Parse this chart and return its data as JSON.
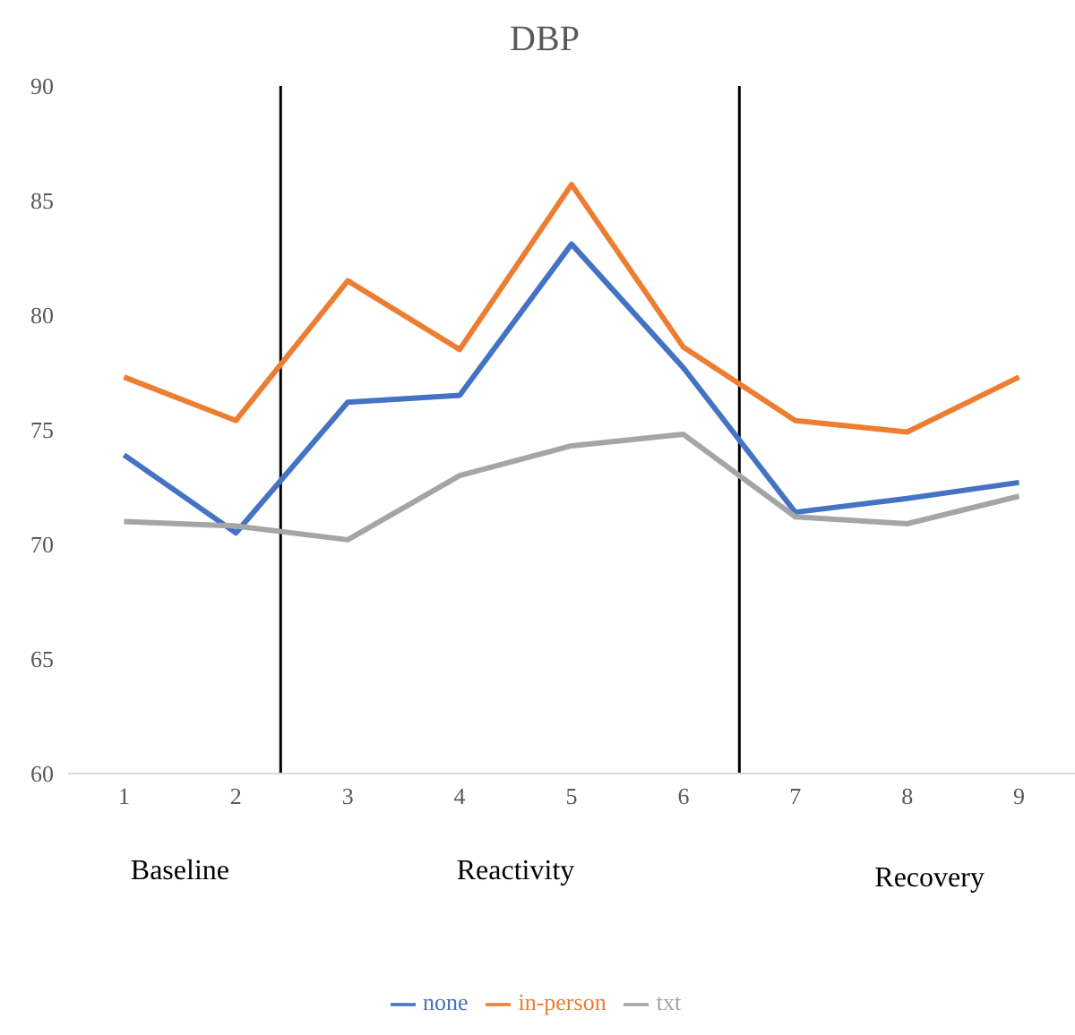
{
  "chart_data": {
    "type": "line",
    "title": "DBP",
    "x": [
      1,
      2,
      3,
      4,
      5,
      6,
      7,
      8,
      9
    ],
    "xlim": [
      0.5,
      9.5
    ],
    "xticks": [
      1,
      2,
      3,
      4,
      5,
      6,
      7,
      8,
      9
    ],
    "ylim": [
      60,
      90
    ],
    "yticks": [
      60,
      65,
      70,
      75,
      80,
      85,
      90
    ],
    "grid": false,
    "legend": "bottom",
    "marker": "none",
    "line_style": "solid",
    "series": [
      {
        "name": "none",
        "color": "#4472c4",
        "values": [
          73.9,
          70.5,
          76.2,
          76.5,
          83.1,
          77.7,
          71.4,
          72.0,
          72.7
        ]
      },
      {
        "name": "in-person",
        "color": "#ed7d31",
        "values": [
          77.3,
          75.4,
          81.5,
          78.5,
          85.7,
          78.6,
          75.4,
          74.9,
          77.3
        ]
      },
      {
        "name": "txt",
        "color": "#a5a5a5",
        "values": [
          71.0,
          70.8,
          70.2,
          73.0,
          74.3,
          74.8,
          71.2,
          70.9,
          72.1
        ]
      }
    ],
    "ref_lines": [
      {
        "axis": "x",
        "value": 2.4,
        "color": "#000000"
      },
      {
        "axis": "x",
        "value": 6.5,
        "color": "#000000"
      }
    ],
    "annotations": [
      "Baseline",
      "Reactivity",
      "Recovery"
    ]
  }
}
